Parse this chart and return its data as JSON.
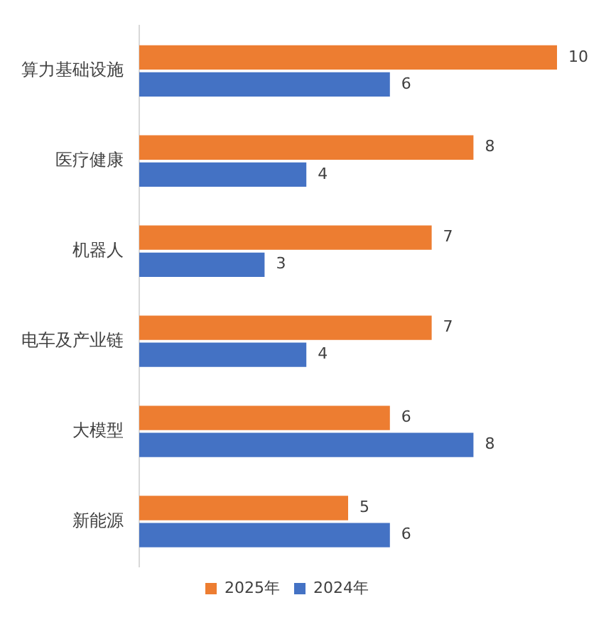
{
  "chart_data": {
    "type": "bar",
    "orientation": "horizontal",
    "categories": [
      "算力基础设施",
      "医疗健康",
      "机器人",
      "电车及产业链",
      "大模型",
      "新能源"
    ],
    "series": [
      {
        "name": "2025年",
        "color": "#ed7d31",
        "values": [
          10,
          8,
          7,
          7,
          6,
          5
        ]
      },
      {
        "name": "2024年",
        "color": "#4472c4",
        "values": [
          6,
          4,
          3,
          4,
          8,
          6
        ]
      }
    ],
    "data_labels": true,
    "legend": "bottom"
  }
}
